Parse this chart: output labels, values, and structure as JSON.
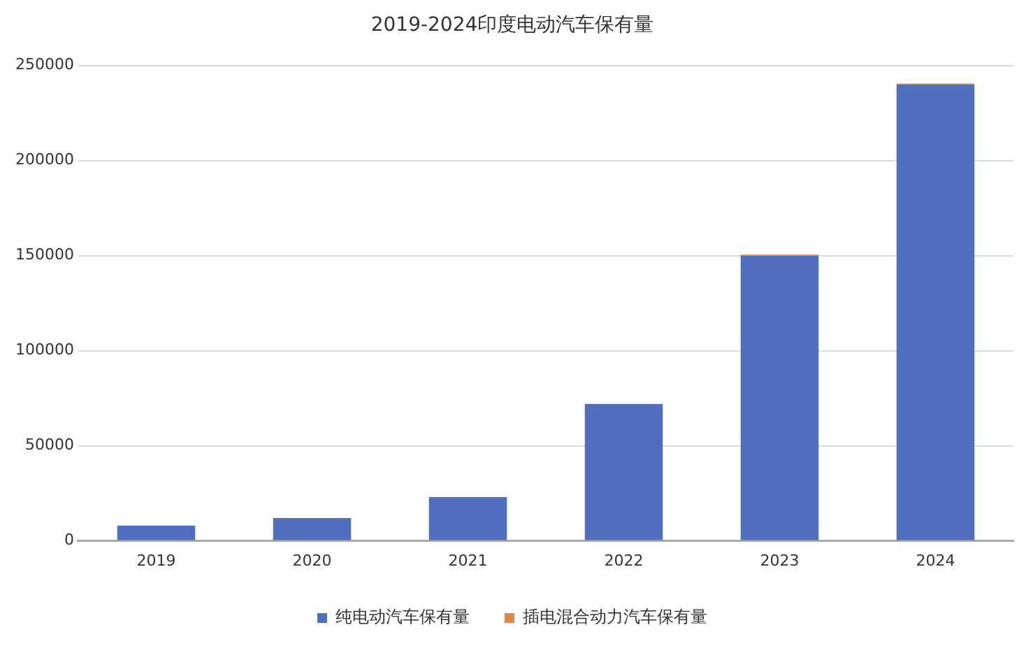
{
  "chart_data": {
    "type": "bar",
    "title": "2019-2024印度电动汽车保有量",
    "categories": [
      "2019",
      "2020",
      "2021",
      "2022",
      "2023",
      "2024"
    ],
    "series": [
      {
        "name": "纯电动汽车保有量",
        "color": "#5070bf",
        "values": [
          8000,
          12000,
          23000,
          72000,
          150000,
          240000
        ]
      },
      {
        "name": "插电混合动力汽车保有量",
        "color": "#e0884a",
        "values": [
          0,
          0,
          0,
          0,
          500,
          500
        ]
      }
    ],
    "stacked": true,
    "ylim": [
      0,
      250000
    ],
    "yticks": [
      0,
      50000,
      100000,
      150000,
      200000,
      250000
    ],
    "grid": "y",
    "legend": "bottom"
  }
}
